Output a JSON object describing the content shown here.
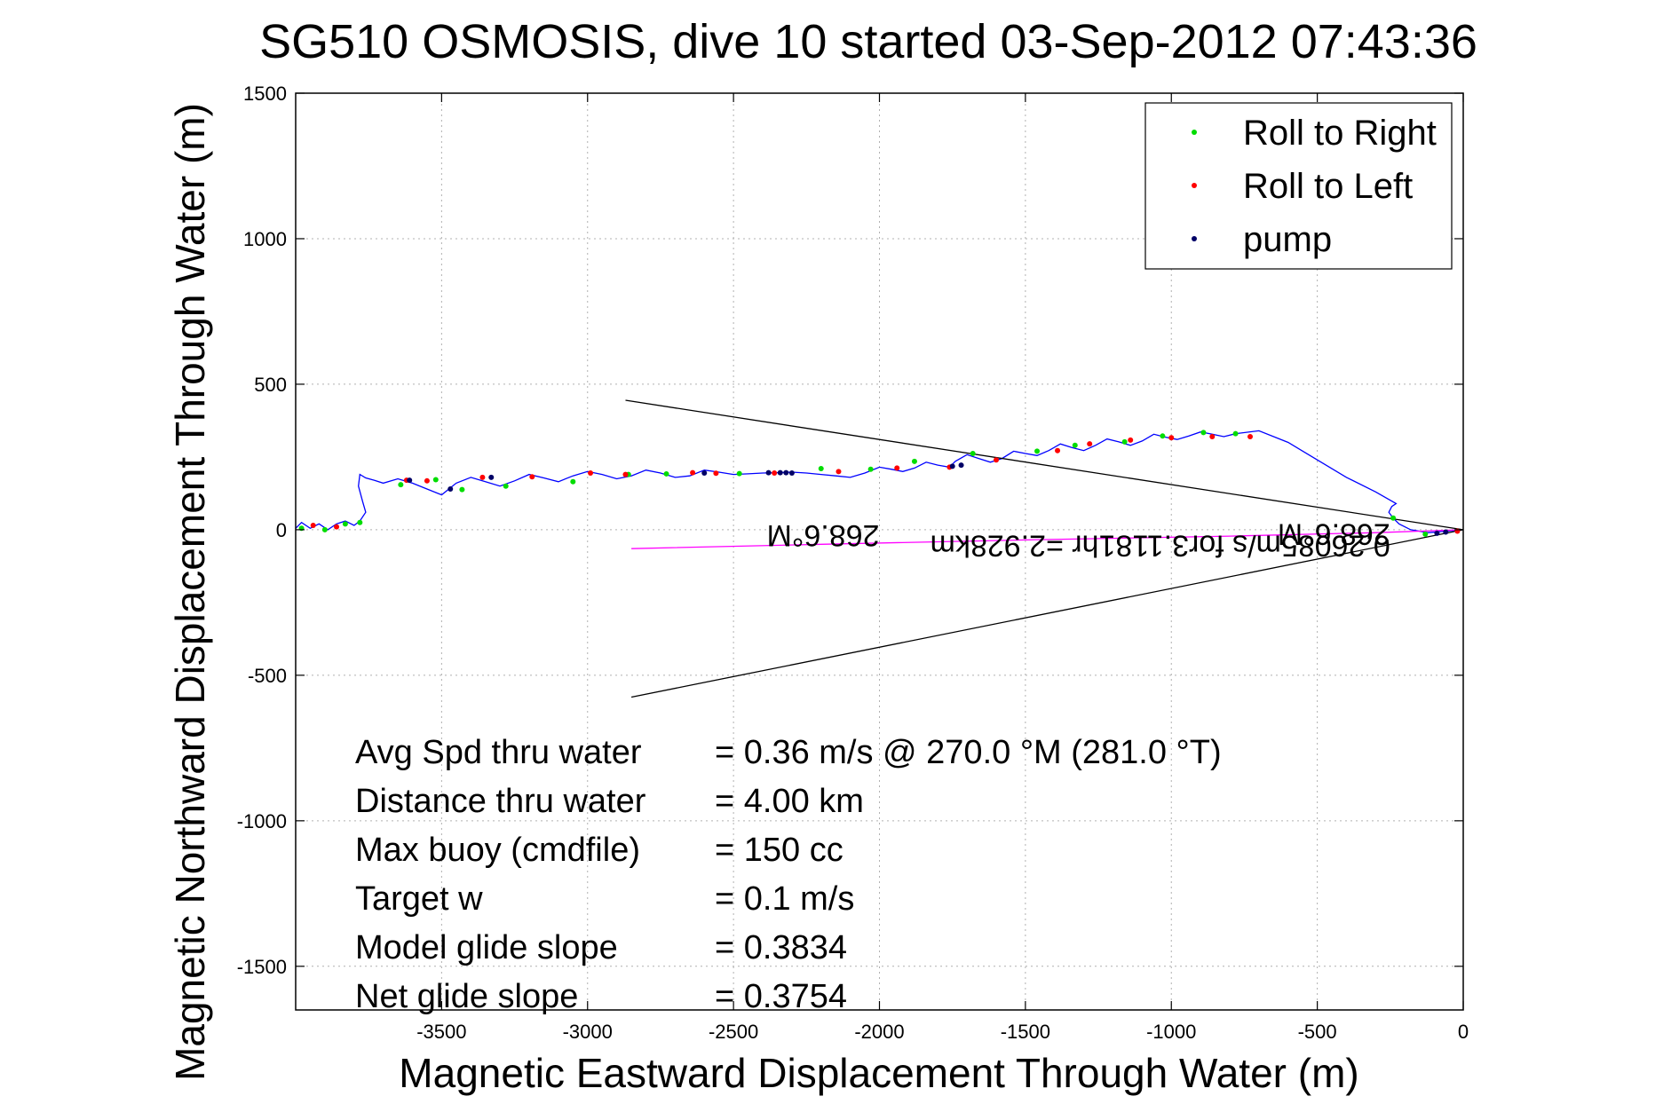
{
  "chart_data": {
    "type": "scatter",
    "title": "SG510 OSMOSIS, dive 10 started 03-Sep-2012 07:43:36",
    "xlabel": "Magnetic Eastward Displacement Through Water (m)",
    "ylabel": "Magnetic Northward Displacement Through Water (m)",
    "xlim": [
      -4000,
      0
    ],
    "ylim": [
      -1650,
      1500
    ],
    "xticks": [
      -3500,
      -3000,
      -2500,
      -2000,
      -1500,
      -1000,
      -500,
      0
    ],
    "yticks": [
      1500,
      1000,
      500,
      0,
      -500,
      -1000,
      -1500
    ],
    "grid": true,
    "legend_position": "top-right",
    "legend": [
      {
        "label": "Roll to Right",
        "color": "#00dd00"
      },
      {
        "label": "Roll to Left",
        "color": "#ff0000"
      },
      {
        "label": "pump",
        "color": "#000066"
      }
    ],
    "series": [
      {
        "name": "",
        "color": "#0000ff",
        "style": "line",
        "x": [
          0,
          -60,
          -120,
          -180,
          -220,
          -240,
          -255,
          -245,
          -230,
          -300,
          -400,
          -500,
          -600,
          -700,
          -780,
          -820,
          -860,
          -900,
          -940,
          -980,
          -1020,
          -1060,
          -1100,
          -1140,
          -1180,
          -1220,
          -1260,
          -1300,
          -1340,
          -1380,
          -1420,
          -1460,
          -1500,
          -1540,
          -1580,
          -1620,
          -1660,
          -1700,
          -1740,
          -1760,
          -1800,
          -1840,
          -1880,
          -1920,
          -1960,
          -2000,
          -2050,
          -2100,
          -2150,
          -2200,
          -2250,
          -2300,
          -2350,
          -2400,
          -2450,
          -2500,
          -2550,
          -2600,
          -2650,
          -2700,
          -2750,
          -2800,
          -2850,
          -2900,
          -2950,
          -3000,
          -3050,
          -3100,
          -3150,
          -3200,
          -3250,
          -3300,
          -3350,
          -3400,
          -3450,
          -3500,
          -3550,
          -3600,
          -3650,
          -3700,
          -3730,
          -3760,
          -3780,
          -3785,
          -3770,
          -3760,
          -3780,
          -3800,
          -3830,
          -3860,
          -3890,
          -3920,
          -3950,
          -3980,
          -4000
        ],
        "y": [
          0,
          -5,
          -10,
          0,
          20,
          40,
          60,
          80,
          90,
          130,
          180,
          240,
          300,
          340,
          330,
          320,
          328,
          336,
          322,
          310,
          318,
          328,
          305,
          290,
          302,
          312,
          290,
          272,
          282,
          295,
          272,
          255,
          262,
          270,
          245,
          232,
          245,
          258,
          235,
          215,
          222,
          232,
          212,
          200,
          208,
          215,
          195,
          180,
          185,
          190,
          195,
          198,
          196,
          195,
          192,
          190,
          198,
          205,
          185,
          180,
          195,
          205,
          185,
          175,
          190,
          200,
          185,
          165,
          178,
          190,
          168,
          150,
          165,
          180,
          160,
          120,
          140,
          160,
          175,
          160,
          170,
          178,
          190,
          150,
          95,
          60,
          30,
          15,
          30,
          20,
          0,
          20,
          5,
          25,
          5
        ]
      },
      {
        "name": "",
        "color": "#ff00ff",
        "style": "line",
        "x": [
          0,
          -300,
          -800,
          -1500,
          -2200,
          -2850
        ],
        "y": [
          0,
          -10,
          -22,
          -35,
          -50,
          -65
        ]
      },
      {
        "name": "",
        "color": "#000000",
        "style": "line",
        "x": [
          0,
          -2870
        ],
        "y": [
          0,
          445
        ]
      },
      {
        "name": "",
        "color": "#000000",
        "style": "line",
        "x": [
          0,
          -2850
        ],
        "y": [
          0,
          -575
        ]
      },
      {
        "name": "Roll to Right",
        "color": "#00dd00",
        "style": "points",
        "x": [
          -3980,
          -3900,
          -3830,
          -3780,
          -3640,
          -3520,
          -3430,
          -3280,
          -3050,
          -2860,
          -2730,
          -2480,
          -2200,
          -2030,
          -1880,
          -1680,
          -1460,
          -1330,
          -1160,
          -1030,
          -890,
          -780,
          -240,
          -130
        ],
        "y": [
          5,
          0,
          20,
          25,
          155,
          172,
          138,
          150,
          165,
          190,
          192,
          193,
          210,
          208,
          235,
          262,
          270,
          290,
          302,
          322,
          334,
          330,
          40,
          -15
        ]
      },
      {
        "name": "Roll to Left",
        "color": "#ff0000",
        "style": "points",
        "x": [
          -3940,
          -3860,
          -3620,
          -3550,
          -3360,
          -3190,
          -2990,
          -2870,
          -2640,
          -2560,
          -2360,
          -2140,
          -1940,
          -1760,
          -1600,
          -1390,
          -1280,
          -1140,
          -1000,
          -860,
          -730,
          -20
        ],
        "y": [
          15,
          10,
          170,
          168,
          180,
          182,
          195,
          190,
          196,
          194,
          195,
          200,
          212,
          215,
          240,
          272,
          295,
          308,
          316,
          320,
          320,
          -5
        ]
      },
      {
        "name": "pump",
        "color": "#000066",
        "style": "points",
        "x": [
          -3610,
          -3470,
          -3330,
          -2600,
          -2380,
          -2340,
          -2320,
          -2300,
          -1750,
          -1720,
          -90,
          -60
        ],
        "y": [
          170,
          140,
          180,
          195,
          196,
          196,
          196,
          195,
          218,
          222,
          -12,
          -8
        ]
      }
    ],
    "annotations": [
      {
        "text": "268.6°M",
        "x": -2000,
        "y": 15,
        "orientation": "rotated-180"
      },
      {
        "text": "268.6°M",
        "x": -250,
        "y": 20,
        "orientation": "rotated-180"
      },
      {
        "text": "0.26085m/s for3.1181hr =2.928km",
        "x": -250,
        "y": -20,
        "orientation": "rotated-180"
      }
    ],
    "stats_block": [
      {
        "label": "Avg Spd thru water",
        "value": "=  0.36 m/s @ 270.0 °M (281.0 °T)"
      },
      {
        "label": "Distance thru water",
        "value": "=  4.00 km"
      },
      {
        "label": "Max buoy (cmdfile)",
        "value": "= 150 cc"
      },
      {
        "label": "Target w",
        "value": "= 0.1 m/s"
      },
      {
        "label": "Model glide slope",
        "value": "= 0.3834"
      },
      {
        "label": "Net glide slope",
        "value": "= 0.3754"
      }
    ]
  }
}
